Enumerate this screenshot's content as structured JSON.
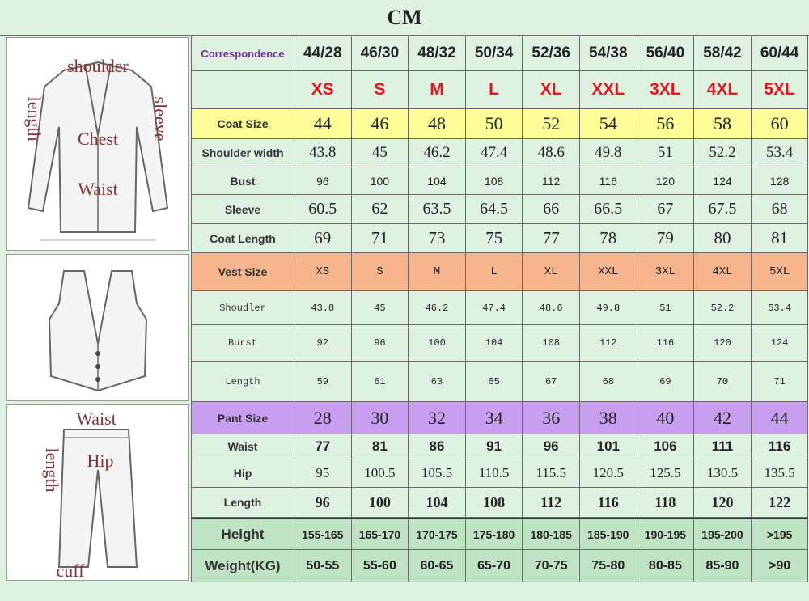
{
  "header": {
    "title": "CM"
  },
  "table": {
    "header_label": "Correspondence",
    "columns": [
      "44/28",
      "46/30",
      "48/32",
      "50/34",
      "52/36",
      "54/38",
      "56/40",
      "58/42",
      "60/44"
    ],
    "size_letters": [
      "XS",
      "S",
      "M",
      "L",
      "XL",
      "XXL",
      "3XL",
      "4XL",
      "5XL"
    ],
    "rows": [
      {
        "label": "Coat Size",
        "values": [
          "44",
          "46",
          "48",
          "50",
          "52",
          "54",
          "56",
          "58",
          "60"
        ]
      },
      {
        "label": "Shoulder width",
        "values": [
          "43.8",
          "45",
          "46.2",
          "47.4",
          "48.6",
          "49.8",
          "51",
          "52.2",
          "53.4"
        ]
      },
      {
        "label": "Bust",
        "values": [
          "96",
          "100",
          "104",
          "108",
          "112",
          "116",
          "120",
          "124",
          "128"
        ]
      },
      {
        "label": "Sleeve",
        "values": [
          "60.5",
          "62",
          "63.5",
          "64.5",
          "66",
          "66.5",
          "67",
          "67.5",
          "68"
        ]
      },
      {
        "label": "Coat Length",
        "values": [
          "69",
          "71",
          "73",
          "75",
          "77",
          "78",
          "79",
          "80",
          "81"
        ]
      },
      {
        "label": "Vest Size",
        "values": [
          "XS",
          "S",
          "M",
          "L",
          "XL",
          "XXL",
          "3XL",
          "4XL",
          "5XL"
        ]
      },
      {
        "label": "Shoudler",
        "values": [
          "43.8",
          "45",
          "46.2",
          "47.4",
          "48.6",
          "49.8",
          "51",
          "52.2",
          "53.4"
        ]
      },
      {
        "label": "Burst",
        "values": [
          "92",
          "96",
          "100",
          "104",
          "108",
          "112",
          "116",
          "120",
          "124"
        ]
      },
      {
        "label": "Length",
        "values": [
          "59",
          "61",
          "63",
          "65",
          "67",
          "68",
          "69",
          "70",
          "71"
        ]
      },
      {
        "label": "Pant Size",
        "values": [
          "28",
          "30",
          "32",
          "34",
          "36",
          "38",
          "40",
          "42",
          "44"
        ]
      },
      {
        "label": "Waist",
        "values": [
          "77",
          "81",
          "86",
          "91",
          "96",
          "101",
          "106",
          "111",
          "116"
        ]
      },
      {
        "label": "Hip",
        "values": [
          "95",
          "100.5",
          "105.5",
          "110.5",
          "115.5",
          "120.5",
          "125.5",
          "130.5",
          "135.5"
        ]
      },
      {
        "label": "Length",
        "values": [
          "96",
          "100",
          "104",
          "108",
          "112",
          "116",
          "118",
          "120",
          "122"
        ]
      },
      {
        "label": "Height",
        "values": [
          "155-165",
          "165-170",
          "170-175",
          "175-180",
          "180-185",
          "185-190",
          "190-195",
          "195-200",
          ">195"
        ]
      },
      {
        "label": "Weight(KG)",
        "values": [
          "50-55",
          "55-60",
          "60-65",
          "65-70",
          "70-75",
          "75-80",
          "80-85",
          "85-90",
          ">90"
        ]
      }
    ]
  },
  "diagrams": {
    "coat": [
      "shoulder",
      "length",
      "sleeve",
      "Chest",
      "Waist"
    ],
    "pant": [
      "Waist",
      "length",
      "Hip",
      "cuff"
    ]
  }
}
